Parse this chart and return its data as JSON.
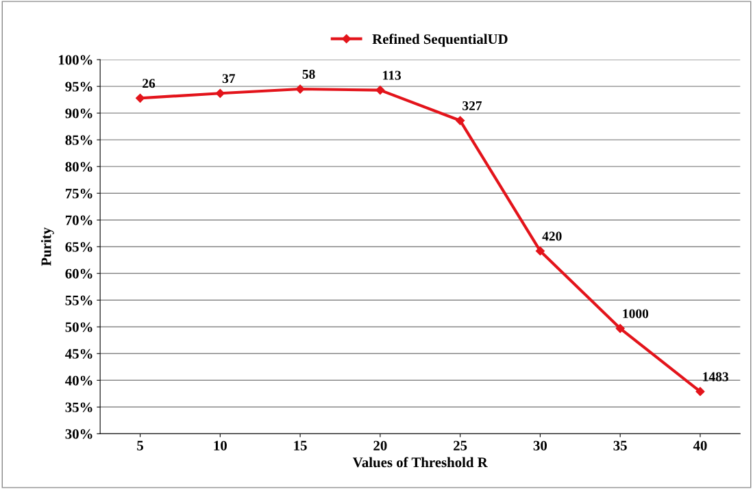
{
  "chart_data": {
    "type": "line",
    "categories": [
      "5",
      "10",
      "15",
      "20",
      "25",
      "30",
      "35",
      "40"
    ],
    "series": [
      {
        "name": "Refined SequentialUD",
        "color": "#e3141b",
        "values": [
          92.8,
          93.7,
          94.5,
          94.3,
          88.6,
          64.2,
          49.7,
          37.9
        ]
      }
    ],
    "xlabel": "Values of Threshold R",
    "ylabel": "Purity",
    "ylim": [
      30,
      100
    ],
    "yticks": [
      {
        "value": 30,
        "label": "30%"
      },
      {
        "value": 35,
        "label": "35%"
      },
      {
        "value": 40,
        "label": "40%"
      },
      {
        "value": 45,
        "label": "45%"
      },
      {
        "value": 50,
        "label": "50%"
      },
      {
        "value": 55,
        "label": "55%"
      },
      {
        "value": 60,
        "label": "60%"
      },
      {
        "value": 65,
        "label": "65%"
      },
      {
        "value": 70,
        "label": "70%"
      },
      {
        "value": 75,
        "label": "75%"
      },
      {
        "value": 80,
        "label": "80%"
      },
      {
        "value": 85,
        "label": "85%"
      },
      {
        "value": 90,
        "label": "90%"
      },
      {
        "value": 95,
        "label": "95%"
      },
      {
        "value": 100,
        "label": "100%"
      }
    ],
    "annotations": [
      {
        "text": "26",
        "x": "5",
        "y": 92.8
      },
      {
        "text": "37",
        "x": "10",
        "y": 93.7
      },
      {
        "text": "58",
        "x": "15",
        "y": 94.5
      },
      {
        "text": "113",
        "x": "20",
        "y": 94.3
      },
      {
        "text": "327",
        "x": "25",
        "y": 88.6
      },
      {
        "text": "420",
        "x": "30",
        "y": 64.2
      },
      {
        "text": "1000",
        "x": "35",
        "y": 49.7
      },
      {
        "text": "1483",
        "x": "40",
        "y": 37.9
      }
    ],
    "grid": "y",
    "legend": "top",
    "marker": "diamond",
    "line_style": "solid"
  }
}
